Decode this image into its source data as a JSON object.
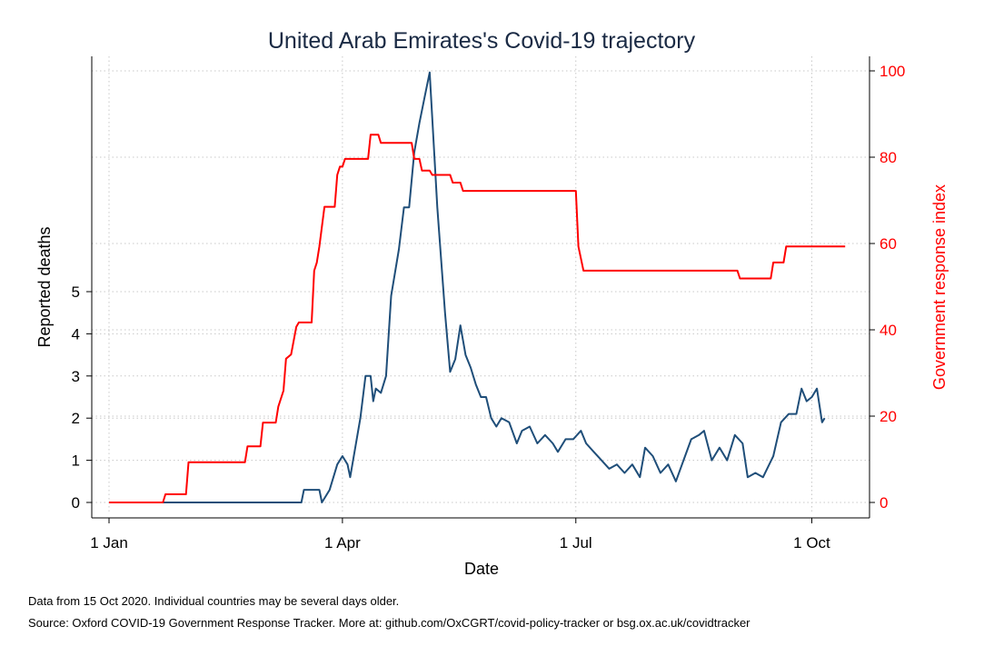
{
  "chart_data": {
    "type": "line",
    "title": "United Arab Emirates's Covid-19 trajectory",
    "xlabel": "Date",
    "ylabel": "Reported deaths",
    "y2label": "Government response index",
    "xlim": [
      "2020-01-01",
      "2020-10-15"
    ],
    "x_ticks": [
      {
        "date": "2020-01-01",
        "label": "1 Jan"
      },
      {
        "date": "2020-04-01",
        "label": "1 Apr"
      },
      {
        "date": "2020-07-01",
        "label": "1 Jul"
      },
      {
        "date": "2020-10-01",
        "label": "1 Oct"
      }
    ],
    "ylim": [
      0,
      10.2
    ],
    "y_ticks": [
      0,
      1,
      2,
      3,
      4,
      5
    ],
    "y2lim": [
      0,
      100
    ],
    "y2_ticks": [
      0,
      20,
      40,
      60,
      80,
      100
    ],
    "grid": true,
    "colors": {
      "deaths": "#1f4e79",
      "stringency": "#ff0000"
    },
    "series": [
      {
        "key": "deaths",
        "axis": "left",
        "points": [
          [
            "2020-01-22",
            0
          ],
          [
            "2020-03-16",
            0
          ],
          [
            "2020-03-17",
            0.3
          ],
          [
            "2020-03-23",
            0.3
          ],
          [
            "2020-03-24",
            0
          ],
          [
            "2020-03-27",
            0.3
          ],
          [
            "2020-03-30",
            0.9
          ],
          [
            "2020-04-01",
            1.1
          ],
          [
            "2020-04-03",
            0.9
          ],
          [
            "2020-04-04",
            0.6
          ],
          [
            "2020-04-06",
            1.3
          ],
          [
            "2020-04-08",
            2.0
          ],
          [
            "2020-04-10",
            3.0
          ],
          [
            "2020-04-12",
            3.0
          ],
          [
            "2020-04-13",
            2.4
          ],
          [
            "2020-04-14",
            2.7
          ],
          [
            "2020-04-16",
            2.6
          ],
          [
            "2020-04-18",
            3.0
          ],
          [
            "2020-04-20",
            4.9
          ],
          [
            "2020-04-23",
            6.0
          ],
          [
            "2020-04-25",
            7.0
          ],
          [
            "2020-04-27",
            7.0
          ],
          [
            "2020-04-29",
            8.3
          ],
          [
            "2020-05-01",
            9.0
          ],
          [
            "2020-05-03",
            9.6
          ],
          [
            "2020-05-05",
            10.2
          ],
          [
            "2020-05-08",
            7.0
          ],
          [
            "2020-05-11",
            4.5
          ],
          [
            "2020-05-13",
            3.1
          ],
          [
            "2020-05-15",
            3.4
          ],
          [
            "2020-05-17",
            4.2
          ],
          [
            "2020-05-19",
            3.5
          ],
          [
            "2020-05-21",
            3.2
          ],
          [
            "2020-05-23",
            2.8
          ],
          [
            "2020-05-25",
            2.5
          ],
          [
            "2020-05-27",
            2.5
          ],
          [
            "2020-05-29",
            2.0
          ],
          [
            "2020-05-31",
            1.8
          ],
          [
            "2020-06-02",
            2.0
          ],
          [
            "2020-06-05",
            1.9
          ],
          [
            "2020-06-08",
            1.4
          ],
          [
            "2020-06-10",
            1.7
          ],
          [
            "2020-06-13",
            1.8
          ],
          [
            "2020-06-16",
            1.4
          ],
          [
            "2020-06-19",
            1.6
          ],
          [
            "2020-06-22",
            1.4
          ],
          [
            "2020-06-24",
            1.2
          ],
          [
            "2020-06-27",
            1.5
          ],
          [
            "2020-06-30",
            1.5
          ],
          [
            "2020-07-03",
            1.7
          ],
          [
            "2020-07-05",
            1.4
          ],
          [
            "2020-07-08",
            1.2
          ],
          [
            "2020-07-11",
            1.0
          ],
          [
            "2020-07-14",
            0.8
          ],
          [
            "2020-07-17",
            0.9
          ],
          [
            "2020-07-20",
            0.7
          ],
          [
            "2020-07-23",
            0.9
          ],
          [
            "2020-07-26",
            0.6
          ],
          [
            "2020-07-28",
            1.3
          ],
          [
            "2020-07-31",
            1.1
          ],
          [
            "2020-08-03",
            0.7
          ],
          [
            "2020-08-06",
            0.9
          ],
          [
            "2020-08-09",
            0.5
          ],
          [
            "2020-08-12",
            1.0
          ],
          [
            "2020-08-15",
            1.5
          ],
          [
            "2020-08-18",
            1.6
          ],
          [
            "2020-08-20",
            1.7
          ],
          [
            "2020-08-23",
            1.0
          ],
          [
            "2020-08-26",
            1.3
          ],
          [
            "2020-08-29",
            1.0
          ],
          [
            "2020-09-01",
            1.6
          ],
          [
            "2020-09-04",
            1.4
          ],
          [
            "2020-09-06",
            0.6
          ],
          [
            "2020-09-09",
            0.7
          ],
          [
            "2020-09-12",
            0.6
          ],
          [
            "2020-09-16",
            1.1
          ],
          [
            "2020-09-19",
            1.9
          ],
          [
            "2020-09-22",
            2.1
          ],
          [
            "2020-09-25",
            2.1
          ],
          [
            "2020-09-27",
            2.7
          ],
          [
            "2020-09-29",
            2.4
          ],
          [
            "2020-10-01",
            2.5
          ],
          [
            "2020-10-03",
            2.7
          ],
          [
            "2020-10-05",
            1.9
          ],
          [
            "2020-10-06",
            2.0
          ]
        ]
      },
      {
        "key": "stringency",
        "axis": "right",
        "points": [
          [
            "2020-01-01",
            0
          ],
          [
            "2020-01-22",
            0
          ],
          [
            "2020-01-23",
            1.9
          ],
          [
            "2020-01-31",
            1.9
          ],
          [
            "2020-02-01",
            9.3
          ],
          [
            "2020-02-23",
            9.3
          ],
          [
            "2020-02-24",
            13.0
          ],
          [
            "2020-02-29",
            13.0
          ],
          [
            "2020-03-01",
            18.5
          ],
          [
            "2020-03-06",
            18.5
          ],
          [
            "2020-03-07",
            22.2
          ],
          [
            "2020-03-09",
            25.9
          ],
          [
            "2020-03-10",
            33.3
          ],
          [
            "2020-03-12",
            34.3
          ],
          [
            "2020-03-14",
            40.7
          ],
          [
            "2020-03-15",
            41.7
          ],
          [
            "2020-03-20",
            41.7
          ],
          [
            "2020-03-21",
            53.7
          ],
          [
            "2020-03-22",
            55.6
          ],
          [
            "2020-03-23",
            59.3
          ],
          [
            "2020-03-25",
            68.5
          ],
          [
            "2020-03-29",
            68.5
          ],
          [
            "2020-03-30",
            75.9
          ],
          [
            "2020-03-31",
            77.8
          ],
          [
            "2020-04-01",
            77.8
          ],
          [
            "2020-04-02",
            79.6
          ],
          [
            "2020-04-11",
            79.6
          ],
          [
            "2020-04-12",
            85.2
          ],
          [
            "2020-04-15",
            85.2
          ],
          [
            "2020-04-16",
            83.3
          ],
          [
            "2020-04-28",
            83.3
          ],
          [
            "2020-04-29",
            79.6
          ],
          [
            "2020-05-01",
            79.6
          ],
          [
            "2020-05-02",
            76.9
          ],
          [
            "2020-05-05",
            76.9
          ],
          [
            "2020-05-06",
            75.9
          ],
          [
            "2020-05-13",
            75.9
          ],
          [
            "2020-05-14",
            74.1
          ],
          [
            "2020-05-17",
            74.1
          ],
          [
            "2020-05-18",
            72.2
          ],
          [
            "2020-07-01",
            72.2
          ],
          [
            "2020-07-02",
            59.3
          ],
          [
            "2020-07-04",
            53.7
          ],
          [
            "2020-09-02",
            53.7
          ],
          [
            "2020-09-03",
            51.9
          ],
          [
            "2020-09-15",
            51.9
          ],
          [
            "2020-09-16",
            55.6
          ],
          [
            "2020-09-20",
            55.6
          ],
          [
            "2020-09-21",
            59.3
          ],
          [
            "2020-10-14",
            59.3
          ]
        ]
      }
    ]
  },
  "notes": {
    "data_note": "Data from 15 Oct 2020. Individual countries may be several days older.",
    "source_note": "Source: Oxford COVID-19 Government Response Tracker. More at: github.com/OxCGRT/covid-policy-tracker or bsg.ox.ac.uk/covidtracker"
  }
}
